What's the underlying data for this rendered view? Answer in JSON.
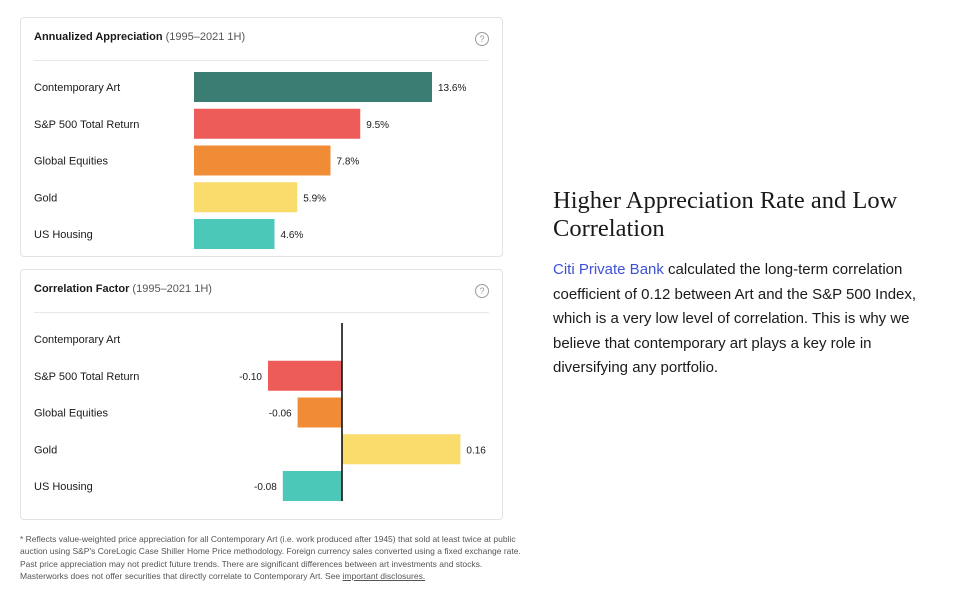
{
  "chart_data": [
    {
      "type": "bar",
      "orientation": "horizontal",
      "title": "Annualized Appreciation",
      "subtitle": "(1995–2021 1H)",
      "categories": [
        "Contemporary Art",
        "S&P 500 Total Return",
        "Global Equities",
        "Gold",
        "US Housing"
      ],
      "values": [
        13.6,
        9.5,
        7.8,
        5.9,
        4.6
      ],
      "value_labels": [
        "13.6%",
        "9.5%",
        "7.8%",
        "5.9%",
        "4.6%"
      ],
      "colors": [
        "#3a7e73",
        "#ee5c59",
        "#f08c35",
        "#f9dc6b",
        "#4bc8b8"
      ],
      "xlim": [
        0,
        13.6
      ],
      "grid": false
    },
    {
      "type": "bar",
      "orientation": "horizontal",
      "title": "Correlation Factor",
      "subtitle": "(1995–2021 1H)",
      "categories": [
        "Contemporary Art",
        "S&P 500 Total Return",
        "Global Equities",
        "Gold",
        "US Housing"
      ],
      "values": [
        null,
        -0.1,
        -0.06,
        0.16,
        -0.08
      ],
      "value_labels": [
        "",
        "-0.10",
        "-0.06",
        "0.16",
        "-0.08"
      ],
      "colors": [
        "#3a7e73",
        "#ee5c59",
        "#f08c35",
        "#f9dc6b",
        "#4bc8b8"
      ],
      "xlim": [
        -0.2,
        0.2
      ],
      "grid": false
    }
  ],
  "help_glyph": "?",
  "footnote": {
    "text": "* Reflects value-weighted price appreciation for all Contemporary Art (i.e. work produced after 1945) that sold at least twice at public auction using S&P's CoreLogic Case Shiller Home Price methodology. Foreign currency sales converted using a fixed exchange rate. Past price appreciation may not predict future trends. There are significant differences between art investments and stocks. Masterworks does not offer securities that directly correlate to Contemporary Art. See ",
    "link": "important disclosures."
  },
  "right": {
    "title": "Higher Appreciation Rate and Low Correlation",
    "link": "Citi Private Bank",
    "body": " calculated the long-term correlation coefficient of 0.12 between Art and the S&P 500 Index, which is a very low level of correlation. This is why we believe that contemporary art plays a key role in diversifying any portfolio.",
    "link_color": "#3f51d6"
  }
}
